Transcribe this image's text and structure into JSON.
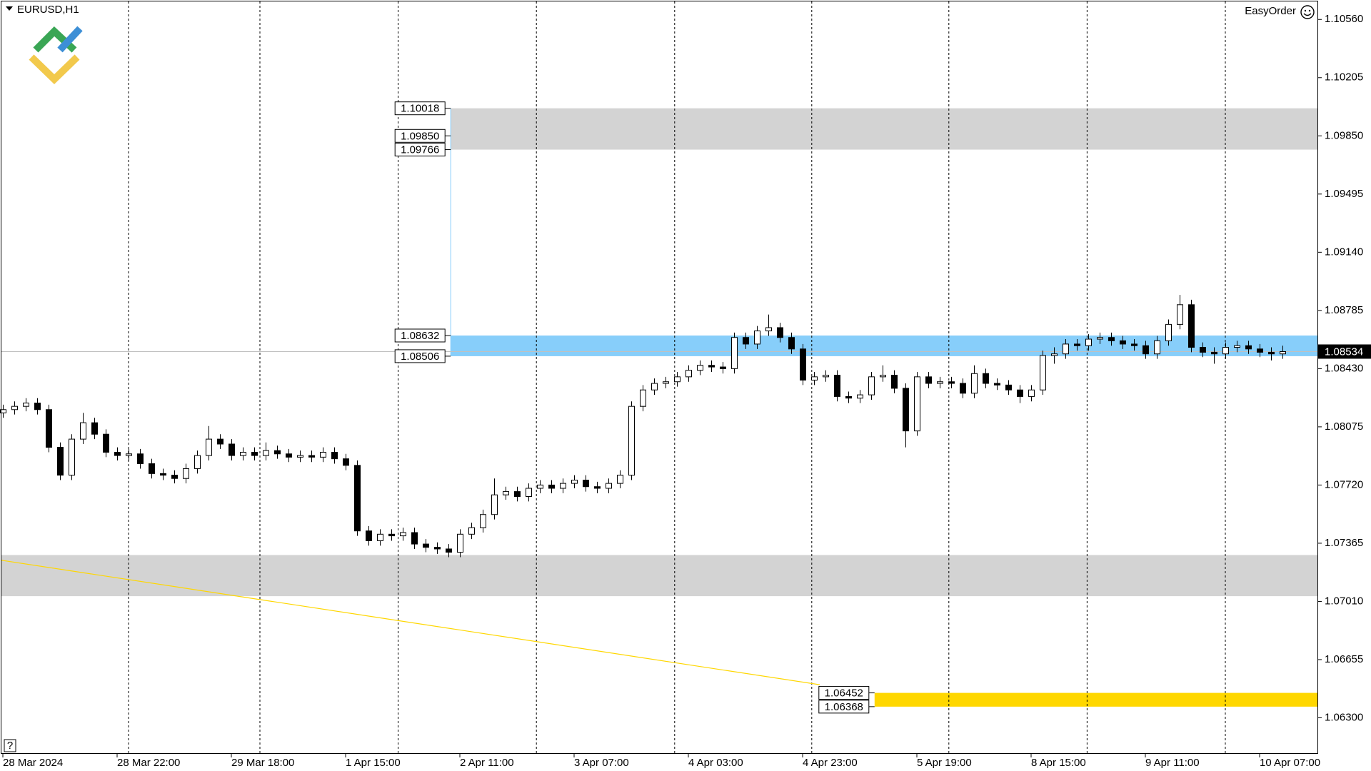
{
  "chart_data": {
    "type": "candlestick",
    "symbol": "EURUSD,H1",
    "panel_title": "EasyOrder",
    "help_button": "?",
    "ylim": [
      1.0608,
      1.1067
    ],
    "yticks": [
      {
        "value": 1.1056,
        "label": "1.10560"
      },
      1.10205,
      {
        "value": 1.0985,
        "label": "1.09850"
      },
      1.09495,
      {
        "value": 1.0914,
        "label": "1.09140"
      },
      1.08785,
      {
        "value": 1.0843,
        "label": "1.08430"
      },
      1.08075,
      {
        "value": 1.0772,
        "label": "1.07720"
      },
      1.07365,
      {
        "value": 1.0701,
        "label": "1.07010"
      },
      1.06655,
      {
        "value": 1.063,
        "label": "1.06300"
      }
    ],
    "current_price": 1.08534,
    "time_labels": [
      {
        "index": 0,
        "label": "28 Mar 2024"
      },
      {
        "index": 10,
        "label": "28 Mar 22:00"
      },
      {
        "index": 20,
        "label": "29 Mar 18:00"
      },
      {
        "index": 30,
        "label": "1 Apr 15:00"
      },
      {
        "index": 40,
        "label": "2 Apr 11:00"
      },
      {
        "index": 50,
        "label": "3 Apr 07:00"
      },
      {
        "index": 60,
        "label": "4 Apr 03:00"
      },
      {
        "index": 70,
        "label": "4 Apr 23:00"
      },
      {
        "index": 80,
        "label": "5 Apr 19:00"
      },
      {
        "index": 90,
        "label": "8 Apr 15:00"
      },
      {
        "index": 100,
        "label": "9 Apr 11:00"
      },
      {
        "index": 110,
        "label": "10 Apr 07:00"
      }
    ],
    "day_separators": [
      11,
      22.5,
      34.6,
      46.7,
      58.8,
      70.8,
      82.8,
      94.9,
      107
    ],
    "zones": [
      {
        "top": 1.10018,
        "bottom": 1.09766,
        "from": 39.2,
        "color": "#d3d3d3",
        "labels": [
          1.10018,
          {
            "value": 1.0985,
            "label": "1.09850"
          },
          1.09766
        ]
      },
      {
        "top": 1.08632,
        "bottom": 1.08506,
        "from": 39.2,
        "color": "#87cefa",
        "labels": [
          1.08632,
          1.08506
        ]
      },
      {
        "top": 1.07293,
        "bottom": 1.07042,
        "from": -0.3,
        "color": "#d3d3d3",
        "labels": []
      },
      {
        "top": 1.06452,
        "bottom": 1.06368,
        "from": 76.3,
        "color": "#ffd700",
        "labels": [
          1.06452,
          1.06368
        ]
      }
    ],
    "trend": {
      "from": [
        -0.3,
        1.07261
      ],
      "to": [
        71.5,
        1.06502
      ],
      "color": "#ffd700"
    },
    "bull_color": "#ffffff",
    "bear_color": "#000000",
    "ohlc": [
      [
        1.0816,
        1.0821,
        1.0813,
        1.0818
      ],
      [
        1.0818,
        1.0823,
        1.0815,
        1.082
      ],
      [
        1.082,
        1.0825,
        1.0817,
        1.0822
      ],
      [
        1.0822,
        1.0825,
        1.0815,
        1.0818
      ],
      [
        1.0818,
        1.0821,
        1.0792,
        1.0795
      ],
      [
        1.0795,
        1.0798,
        1.0775,
        1.0778
      ],
      [
        1.0778,
        1.0803,
        1.0775,
        1.08
      ],
      [
        1.08,
        1.0816,
        1.0797,
        1.081
      ],
      [
        1.081,
        1.0813,
        1.08,
        1.0803
      ],
      [
        1.0803,
        1.0806,
        1.0789,
        1.0792
      ],
      [
        1.0792,
        1.0795,
        1.0787,
        1.079
      ],
      [
        1.079,
        1.0794,
        1.0787,
        1.0791
      ],
      [
        1.0791,
        1.0794,
        1.0782,
        1.0785
      ],
      [
        1.0785,
        1.0788,
        1.0776,
        1.0779
      ],
      [
        1.0779,
        1.0782,
        1.0775,
        1.0778
      ],
      [
        1.0778,
        1.0781,
        1.0773,
        1.0776
      ],
      [
        1.0776,
        1.0785,
        1.0773,
        1.0782
      ],
      [
        1.0782,
        1.0793,
        1.0779,
        1.079
      ],
      [
        1.079,
        1.0808,
        1.0787,
        1.08
      ],
      [
        1.08,
        1.0803,
        1.0794,
        1.0797
      ],
      [
        1.0797,
        1.08,
        1.0787,
        1.079
      ],
      [
        1.079,
        1.0795,
        1.0787,
        1.0792
      ],
      [
        1.0792,
        1.0795,
        1.0787,
        1.079
      ],
      [
        1.079,
        1.0798,
        1.0787,
        1.0793
      ],
      [
        1.0793,
        1.0796,
        1.0788,
        1.0791
      ],
      [
        1.0791,
        1.0794,
        1.0786,
        1.0789
      ],
      [
        1.0789,
        1.0793,
        1.0786,
        1.079
      ],
      [
        1.079,
        1.0793,
        1.0786,
        1.0789
      ],
      [
        1.0789,
        1.0795,
        1.0786,
        1.0792
      ],
      [
        1.0792,
        1.0795,
        1.0785,
        1.0788
      ],
      [
        1.0788,
        1.0791,
        1.0781,
        1.0784
      ],
      [
        1.0784,
        1.0787,
        1.0741,
        1.0744
      ],
      [
        1.0744,
        1.0747,
        1.0735,
        1.0738
      ],
      [
        1.0738,
        1.0745,
        1.0735,
        1.0742
      ],
      [
        1.0742,
        1.0745,
        1.0738,
        1.0741
      ],
      [
        1.0741,
        1.0746,
        1.0738,
        1.0743
      ],
      [
        1.0743,
        1.0746,
        1.0733,
        1.0736
      ],
      [
        1.0736,
        1.0739,
        1.0731,
        1.0734
      ],
      [
        1.0734,
        1.0737,
        1.073,
        1.0733
      ],
      [
        1.0733,
        1.0736,
        1.0728,
        1.0731
      ],
      [
        1.0731,
        1.0745,
        1.0728,
        1.0742
      ],
      [
        1.0742,
        1.0749,
        1.0739,
        1.0746
      ],
      [
        1.0746,
        1.0757,
        1.0743,
        1.0754
      ],
      [
        1.0754,
        1.0776,
        1.0751,
        1.0766
      ],
      [
        1.0766,
        1.0771,
        1.0763,
        1.0768
      ],
      [
        1.0768,
        1.0771,
        1.0762,
        1.0765
      ],
      [
        1.0765,
        1.0773,
        1.0762,
        1.077
      ],
      [
        1.077,
        1.0775,
        1.0767,
        1.0772
      ],
      [
        1.0772,
        1.0775,
        1.0767,
        1.077
      ],
      [
        1.077,
        1.0776,
        1.0767,
        1.0773
      ],
      [
        1.0773,
        1.0778,
        1.077,
        1.0775
      ],
      [
        1.0775,
        1.0778,
        1.0768,
        1.0771
      ],
      [
        1.0771,
        1.0774,
        1.0767,
        1.077
      ],
      [
        1.077,
        1.0776,
        1.0767,
        1.0773
      ],
      [
        1.0773,
        1.0781,
        1.077,
        1.0778
      ],
      [
        1.0778,
        1.0823,
        1.0775,
        1.082
      ],
      [
        1.082,
        1.0833,
        1.0817,
        1.083
      ],
      [
        1.083,
        1.0837,
        1.0827,
        1.0834
      ],
      [
        1.0834,
        1.0838,
        1.0831,
        1.0835
      ],
      [
        1.0835,
        1.0841,
        1.0832,
        1.0838
      ],
      [
        1.0838,
        1.0845,
        1.0835,
        1.0842
      ],
      [
        1.0842,
        1.0848,
        1.0839,
        1.0845
      ],
      [
        1.0845,
        1.0848,
        1.0841,
        1.0844
      ],
      [
        1.0844,
        1.0847,
        1.084,
        1.0843
      ],
      [
        1.0843,
        1.0865,
        1.084,
        1.0862
      ],
      [
        1.0862,
        1.0865,
        1.0855,
        1.0858
      ],
      [
        1.0858,
        1.0869,
        1.0855,
        1.0866
      ],
      [
        1.0866,
        1.0876,
        1.0863,
        1.0868
      ],
      [
        1.0868,
        1.0871,
        1.0859,
        1.0862
      ],
      [
        1.0862,
        1.0865,
        1.0852,
        1.0855
      ],
      [
        1.0855,
        1.0858,
        1.0833,
        1.0836
      ],
      [
        1.0836,
        1.0841,
        1.0833,
        1.0838
      ],
      [
        1.0838,
        1.0842,
        1.0835,
        1.0839
      ],
      [
        1.0839,
        1.0842,
        1.0823,
        1.0826
      ],
      [
        1.0826,
        1.0829,
        1.0822,
        1.0825
      ],
      [
        1.0825,
        1.083,
        1.0822,
        1.0827
      ],
      [
        1.0827,
        1.0841,
        1.0824,
        1.0838
      ],
      [
        1.0838,
        1.0845,
        1.0835,
        1.0839
      ],
      [
        1.0839,
        1.0842,
        1.0828,
        1.0831
      ],
      [
        1.0831,
        1.0834,
        1.0795,
        1.0805
      ],
      [
        1.0805,
        1.0841,
        1.0802,
        1.0838
      ],
      [
        1.0838,
        1.0841,
        1.0831,
        1.0834
      ],
      [
        1.0834,
        1.0838,
        1.0831,
        1.0835
      ],
      [
        1.0835,
        1.0838,
        1.0831,
        1.0834
      ],
      [
        1.0834,
        1.0837,
        1.0825,
        1.0828
      ],
      [
        1.0828,
        1.0845,
        1.0825,
        1.084
      ],
      [
        1.084,
        1.0843,
        1.0831,
        1.0834
      ],
      [
        1.0834,
        1.0837,
        1.083,
        1.0833
      ],
      [
        1.0833,
        1.0836,
        1.0827,
        1.083
      ],
      [
        1.083,
        1.0833,
        1.0822,
        1.0826
      ],
      [
        1.0826,
        1.0833,
        1.0823,
        1.083
      ],
      [
        1.083,
        1.0854,
        1.0827,
        1.0851
      ],
      [
        1.0851,
        1.0856,
        1.0846,
        1.0852
      ],
      [
        1.0852,
        1.0861,
        1.0849,
        1.0858
      ],
      [
        1.0858,
        1.0861,
        1.0854,
        1.0857
      ],
      [
        1.0857,
        1.0864,
        1.0854,
        1.0861
      ],
      [
        1.0861,
        1.0865,
        1.0858,
        1.0862
      ],
      [
        1.0862,
        1.0865,
        1.0857,
        1.086
      ],
      [
        1.086,
        1.0863,
        1.0855,
        1.0858
      ],
      [
        1.0858,
        1.0861,
        1.0854,
        1.0857
      ],
      [
        1.0857,
        1.086,
        1.0849,
        1.0852
      ],
      [
        1.0852,
        1.0863,
        1.0849,
        1.086
      ],
      [
        1.086,
        1.0873,
        1.0857,
        1.087
      ],
      [
        1.087,
        1.0888,
        1.0867,
        1.0882
      ],
      [
        1.0882,
        1.0885,
        1.0853,
        1.0856
      ],
      [
        1.0856,
        1.0859,
        1.085,
        1.0853
      ],
      [
        1.0853,
        1.0856,
        1.0846,
        1.0852
      ],
      [
        1.0852,
        1.0859,
        1.0849,
        1.0856
      ],
      [
        1.0856,
        1.086,
        1.0853,
        1.0857
      ],
      [
        1.0857,
        1.086,
        1.0852,
        1.0855
      ],
      [
        1.0855,
        1.0858,
        1.085,
        1.0853
      ],
      [
        1.0853,
        1.0856,
        1.0848,
        1.0852
      ],
      [
        1.0852,
        1.0857,
        1.0849,
        1.08534
      ]
    ]
  }
}
